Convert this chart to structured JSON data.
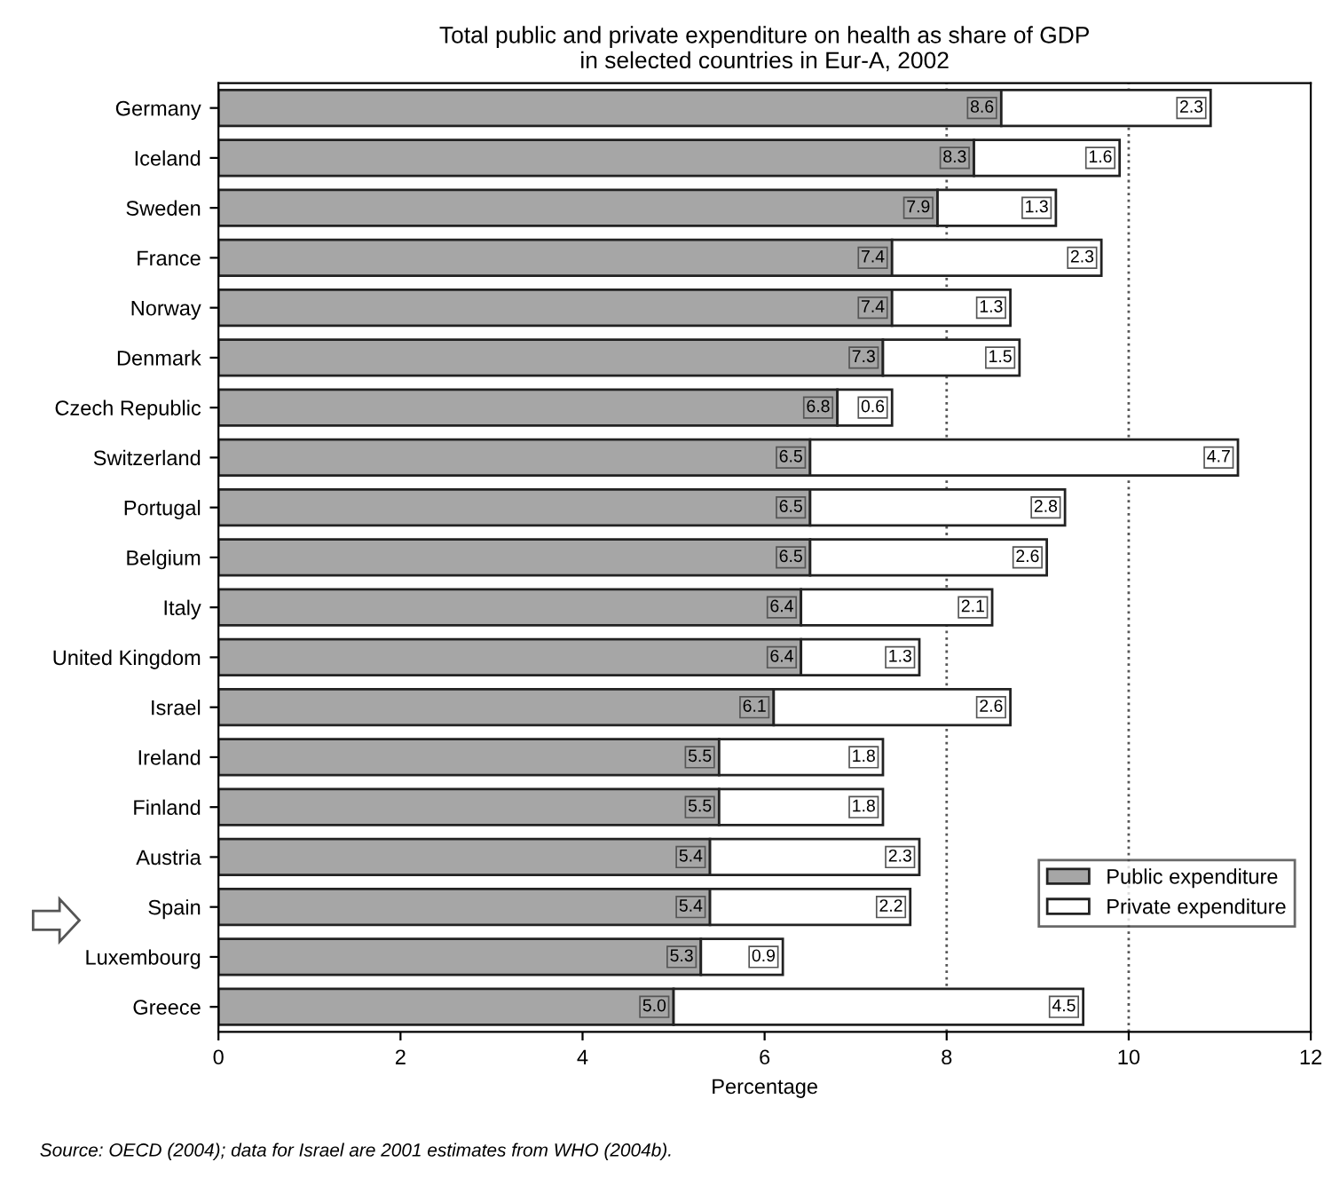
{
  "chart_data": {
    "type": "bar",
    "orientation": "horizontal",
    "stacked": true,
    "title": "Total public and private expenditure on health as share of GDP\nin selected countries in Eur-A, 2002",
    "xlabel": "Percentage",
    "categories": [
      "Germany",
      "Iceland",
      "Sweden",
      "France",
      "Norway",
      "Denmark",
      "Czech Republic",
      "Switzerland",
      "Portugal",
      "Belgium",
      "Italy",
      "United Kingdom",
      "Israel",
      "Ireland",
      "Finland",
      "Austria",
      "Spain",
      "Luxembourg",
      "Greece"
    ],
    "series": [
      {
        "name": "Public expenditure",
        "color": "#a6a6a6",
        "values": [
          8.6,
          8.3,
          7.9,
          7.4,
          7.4,
          7.3,
          6.8,
          6.5,
          6.5,
          6.5,
          6.4,
          6.4,
          6.1,
          5.5,
          5.5,
          5.4,
          5.4,
          5.3,
          5.0
        ],
        "value_labels": [
          "8.6",
          "8.3",
          "7.9",
          "7.4",
          "7.4",
          "7.3",
          "6.8",
          "6.5",
          "6.5",
          "6.5",
          "6.4",
          "6.4",
          "6.1",
          "5.5",
          "5.5",
          "5.4",
          "5.4",
          "5.3",
          "5.0"
        ]
      },
      {
        "name": "Private expenditure",
        "color": "#ffffff",
        "values": [
          2.3,
          1.6,
          1.3,
          2.3,
          1.3,
          1.5,
          0.6,
          4.7,
          2.8,
          2.6,
          2.1,
          1.3,
          2.6,
          1.8,
          1.8,
          2.3,
          2.2,
          0.9,
          4.5
        ]
      }
    ],
    "data_labels": true,
    "xlim": [
      0,
      12
    ],
    "xticks": [
      0,
      2,
      4,
      6,
      8,
      10,
      12
    ],
    "ref_lines": [
      {
        "axis": "x",
        "value": 8,
        "line_style": "dotted"
      },
      {
        "axis": "x",
        "value": 10,
        "line_style": "dotted"
      }
    ],
    "grid": false,
    "legend": "bottom right",
    "annotations": [
      "Source: OECD (2004); data for Israel are 2001 estimates from WHO (2004b)."
    ]
  }
}
